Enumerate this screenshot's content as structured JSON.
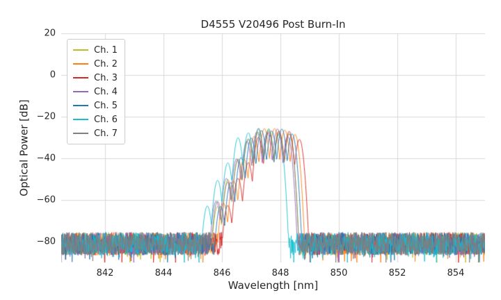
{
  "chart_data": {
    "type": "line",
    "title": "D4555 V20496 Post Burn-In",
    "xlabel": "Wavelength [nm]",
    "ylabel": "Optical Power [dB]",
    "xlim": [
      840.5,
      855
    ],
    "ylim": [
      -90,
      20
    ],
    "xticks": [
      842,
      844,
      846,
      848,
      850,
      852,
      854
    ],
    "yticks": [
      20,
      0,
      -20,
      -40,
      -60,
      -80
    ],
    "grid": true,
    "grid_color": "#d9d9d9",
    "background": "#ffffff",
    "legend_position": "upper-left",
    "noise": {
      "floor_db": -81,
      "amplitude_db": 5.5,
      "spike_extra_db": 6,
      "spike_prob": 0.07,
      "step_nm": 0.012
    },
    "passband": {
      "lobe_offsets_nm": [
        -1.6,
        -1.25,
        -0.9,
        -0.55,
        -0.2,
        0.15,
        0.5,
        0.85
      ],
      "lobe_heights_db": [
        -62,
        -51,
        -41,
        -31,
        -27,
        -26.3,
        -27,
        -29.5
      ],
      "lobe_curvature_db_per_nm2": 480,
      "peak_db": -26.3,
      "band_start_nm": 845.5,
      "band_stop_nm": 848.7
    },
    "series": [
      {
        "name": "Ch. 1",
        "color": "#bcbd22",
        "center_nm": 847.45,
        "seed": 101
      },
      {
        "name": "Ch. 2",
        "color": "#ff7f0e",
        "center_nm": 847.65,
        "seed": 102
      },
      {
        "name": "Ch. 3",
        "color": "#d62728",
        "center_nm": 847.8,
        "seed": 103
      },
      {
        "name": "Ch. 4",
        "color": "#9467bd",
        "center_nm": 847.4,
        "seed": 104
      },
      {
        "name": "Ch. 5",
        "color": "#1f77b4",
        "center_nm": 847.55,
        "seed": 105
      },
      {
        "name": "Ch. 6",
        "color": "#17becf",
        "center_nm": 847.1,
        "seed": 106
      },
      {
        "name": "Ch. 7",
        "color": "#7f7f7f",
        "center_nm": 847.45,
        "seed": 107
      }
    ]
  }
}
